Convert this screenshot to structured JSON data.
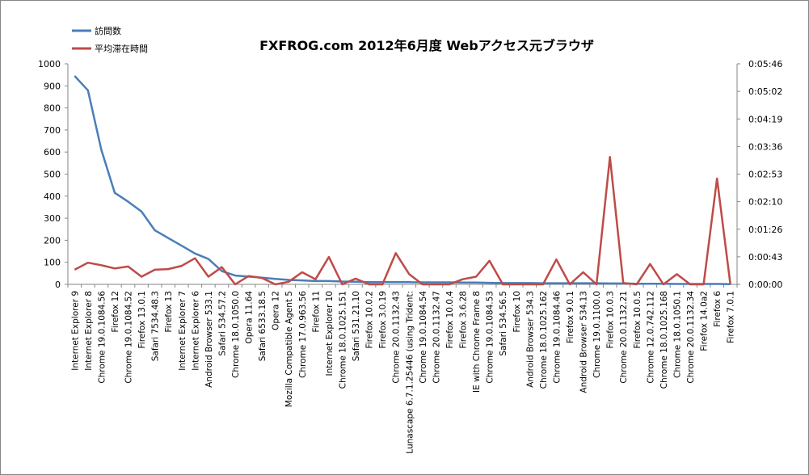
{
  "chart_data": {
    "type": "line",
    "title": "FXFROG.com 2012年6月度 Webアクセス元ブラウザ",
    "categories": [
      "Internet Explorer 9",
      "Internet Explorer 8",
      "Chrome 19.0.1084.56",
      "Firefox 12",
      "Chrome 19.0.1084.52",
      "Firefox 13.0.1",
      "Safari 7534.48.3",
      "Firefox 13",
      "Internet Explorer 7",
      "Internet Explorer 6",
      "Android Browser 533.1",
      "Safari 534.57.2",
      "Chrome 18.0.1050.0",
      "Opera 11.64",
      "Safari 6533.18.5",
      "Opera 12",
      "Mozilla Compatible Agent 5",
      "Chrome 17.0.963.56",
      "Firefox 11",
      "Internet Explorer 10",
      "Chrome 18.0.1025.151",
      "Safari 531.21.10",
      "Firefox 10.0.2",
      "Firefox 3.0.19",
      "Chrome 20.0.1132.43",
      "Lunascape 6.7.1.25446 (using Trident:",
      "Chrome 19.0.1084.54",
      "Chrome 20.0.1132.47",
      "Firefox 10.0.4",
      "Firefox 3.6.28",
      "IE with Chrome Frame 8",
      "Chrome 19.0.1084.53",
      "Safari 534.56.5",
      "Firefox 10",
      "Android Browser 534.3",
      "Chrome 18.0.1025.162",
      "Chrome 19.0.1084.46",
      "Firefox 9.0.1",
      "Android Browser 534.13",
      "Chrome 19.0.1100.0",
      "Firefox 10.0.3",
      "Chrome 20.0.1132.21",
      "Firefox 10.0.5",
      "Chrome 12.0.742.112",
      "Chrome 18.0.1025.168",
      "Chrome 18.0.1050.1",
      "Chrome 20.0.1132.34",
      "Firefox 14.0a2",
      "Firefox 6",
      "Firefox 7.0.1"
    ],
    "series": [
      {
        "name": "訪問数",
        "color": "#4a7ebb",
        "axis": "left",
        "values": [
          945,
          880,
          610,
          415,
          375,
          330,
          245,
          210,
          175,
          140,
          115,
          60,
          40,
          35,
          30,
          25,
          20,
          18,
          15,
          15,
          13,
          12,
          10,
          10,
          10,
          10,
          9,
          9,
          9,
          8,
          8,
          7,
          6,
          6,
          6,
          5,
          5,
          5,
          5,
          5,
          4,
          4,
          3,
          3,
          3,
          2,
          2,
          2,
          2,
          1
        ]
      },
      {
        "name": "平均滞在時間",
        "color": "#be4b48",
        "axis": "right",
        "values_seconds": [
          23,
          34,
          30,
          25,
          28,
          12,
          23,
          24,
          29,
          41,
          12,
          27,
          0,
          13,
          10,
          0,
          4,
          19,
          8,
          43,
          0,
          9,
          0,
          0,
          49,
          16,
          0,
          0,
          0,
          8,
          12,
          37,
          0,
          0,
          0,
          0,
          39,
          0,
          19,
          0,
          200,
          2,
          0,
          32,
          0,
          16,
          0,
          0,
          166,
          0
        ]
      }
    ],
    "y_left": {
      "min": 0,
      "max": 1000,
      "ticks": [
        "0",
        "100",
        "200",
        "300",
        "400",
        "500",
        "600",
        "700",
        "800",
        "900",
        "1000"
      ]
    },
    "y_right": {
      "min": 0,
      "max": 346,
      "ticks": [
        "0:00:00",
        "0:00:43",
        "0:01:26",
        "0:02:10",
        "0:02:53",
        "0:03:36",
        "0:04:19",
        "0:05:02",
        "0:05:46"
      ]
    },
    "grid": false,
    "legend_position": "top-left"
  }
}
